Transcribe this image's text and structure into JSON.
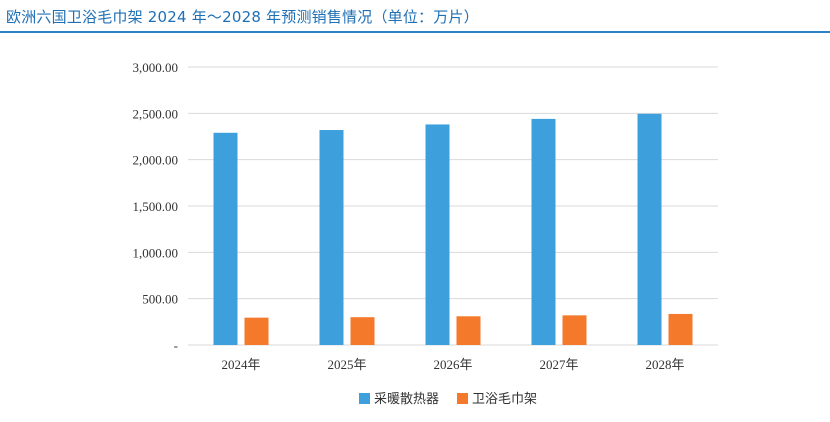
{
  "header": {
    "title": "欧洲六国卫浴毛巾架 2024 年～2028 年预测销售情况（单位：万片）"
  },
  "colors": {
    "title": "#1f6fb4",
    "rule": "#2a82c9",
    "series_1": "#3da0dd",
    "series_2": "#f4792a",
    "grid": "#d9d9d9"
  },
  "chart_data": {
    "type": "bar",
    "title": "",
    "xlabel": "",
    "ylabel": "",
    "categories": [
      "2024年",
      "2025年",
      "2026年",
      "2027年",
      "2028年"
    ],
    "series": [
      {
        "name": "采暖散热器",
        "values": [
          2290,
          2320,
          2380,
          2440,
          2495
        ]
      },
      {
        "name": "卫浴毛巾架",
        "values": [
          295,
          300,
          310,
          320,
          335
        ]
      }
    ],
    "ylim": [
      0,
      3000
    ],
    "yticks": [
      0,
      500,
      1000,
      1500,
      2000,
      2500,
      3000
    ],
    "ytick_labels": [
      "-",
      "500.00",
      "1,000.00",
      "1,500.00",
      "2,000.00",
      "2,500.00",
      "3,000.00"
    ],
    "grid": true,
    "legend": "bottom-center"
  }
}
